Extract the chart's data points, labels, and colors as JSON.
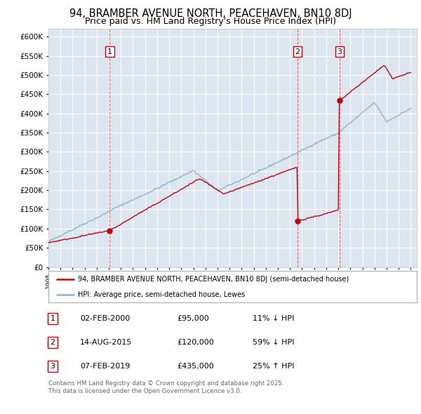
{
  "title": "94, BRAMBER AVENUE NORTH, PEACEHAVEN, BN10 8DJ",
  "subtitle": "Price paid vs. HM Land Registry's House Price Index (HPI)",
  "legend_line1": "94, BRAMBER AVENUE NORTH, PEACEHAVEN, BN10 8DJ (semi-detached house)",
  "legend_line2": "HPI: Average price, semi-detached house, Lewes",
  "footer": "Contains HM Land Registry data © Crown copyright and database right 2025.\nThis data is licensed under the Open Government Licence v3.0.",
  "sale_dates_float": [
    2000.083,
    2015.625,
    2019.1
  ],
  "sale_prices": [
    95000,
    120000,
    435000
  ],
  "sale_labels": [
    "1",
    "2",
    "3"
  ],
  "sale_table": [
    {
      "label": "1",
      "date": "02-FEB-2000",
      "price": "£95,000",
      "hpi": "11% ↓ HPI"
    },
    {
      "label": "2",
      "date": "14-AUG-2015",
      "price": "£120,000",
      "hpi": "59% ↓ HPI"
    },
    {
      "label": "3",
      "date": "07-FEB-2019",
      "price": "£435,000",
      "hpi": "25% ↑ HPI"
    }
  ],
  "plot_bg_color": "#dce6f0",
  "red_line_color": "#c0000b",
  "blue_line_color": "#8ab4d4",
  "vline_color": "#e06060",
  "ylim": [
    0,
    620000
  ],
  "yticks": [
    0,
    50000,
    100000,
    150000,
    200000,
    250000,
    300000,
    350000,
    400000,
    450000,
    500000,
    550000,
    600000
  ],
  "grid_color": "#ffffff",
  "title_fontsize": 10.5,
  "subtitle_fontsize": 9,
  "xmin": 1995,
  "xmax": 2025.5
}
